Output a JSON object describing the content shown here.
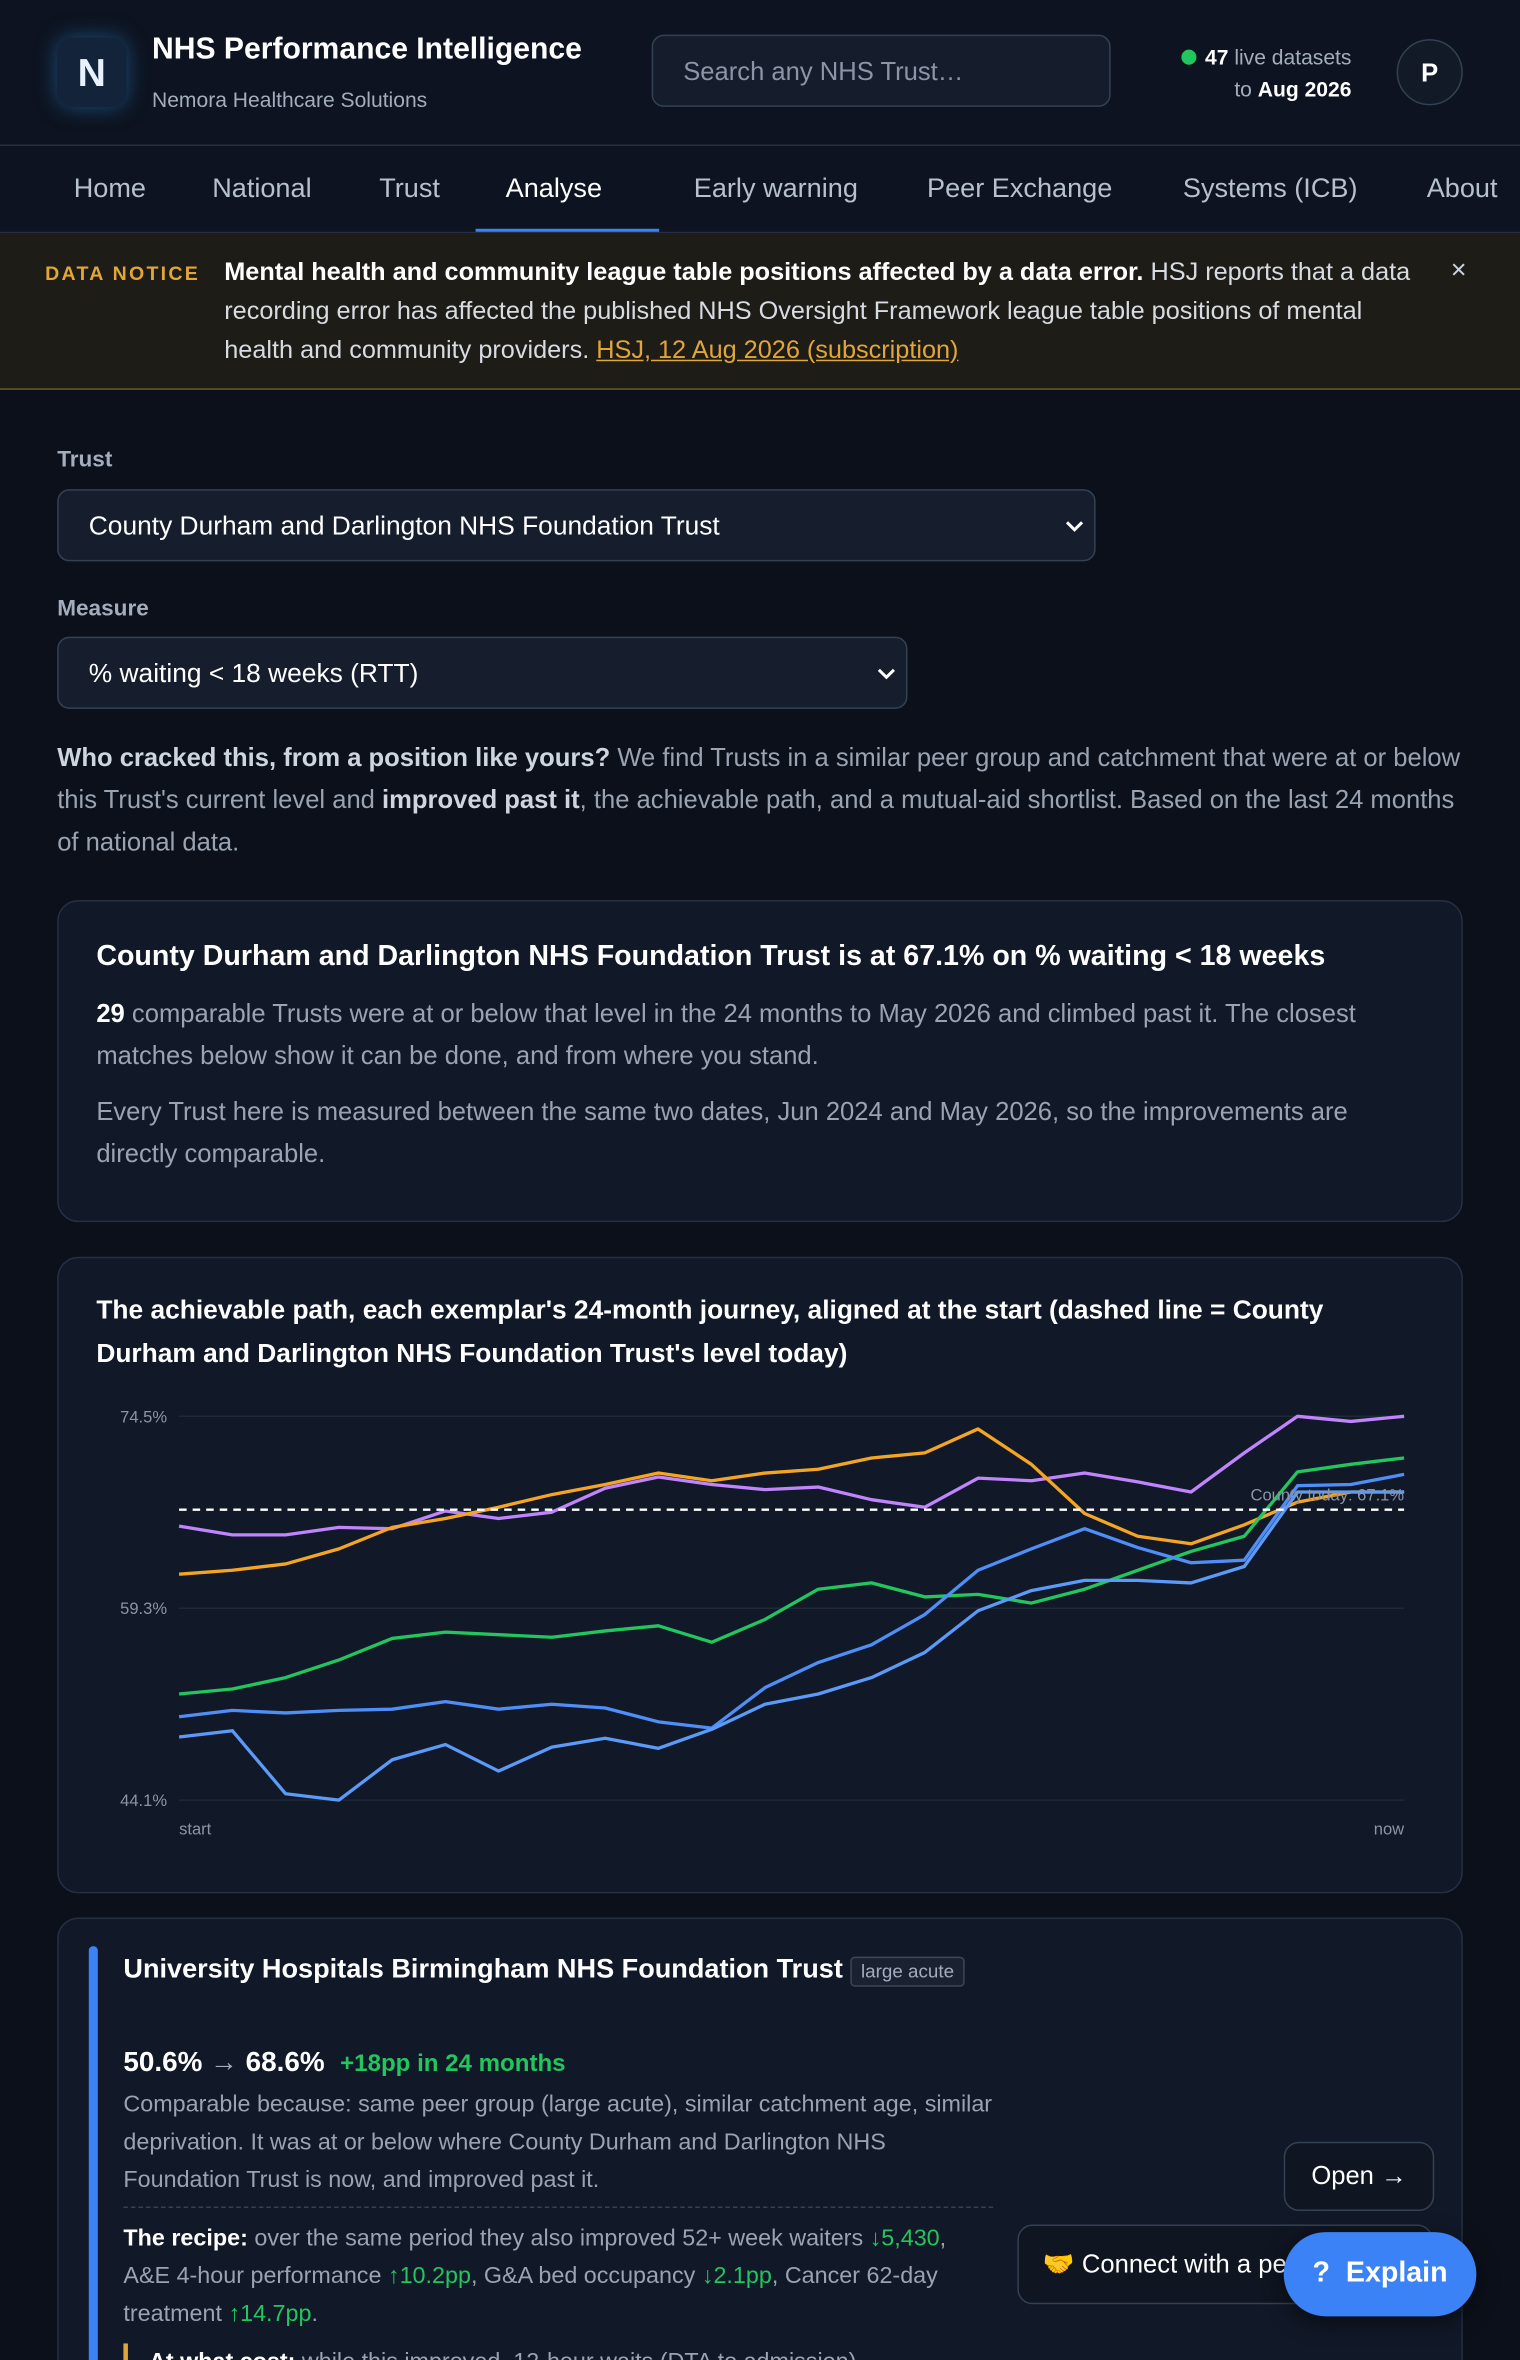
{
  "header": {
    "logo": "N",
    "title": "NHS Performance Intelligence",
    "subtitle": "Nemora Healthcare Solutions",
    "search_placeholder": "Search any NHS Trust…",
    "status": {
      "count": "47",
      "text": "live datasets",
      "prefix": "to",
      "date": "Aug 2026"
    },
    "avatar": "P"
  },
  "nav": {
    "items": [
      "Home",
      "National",
      "Trust",
      "Analyse",
      "Early warning",
      "Peer Exchange",
      "Systems (ICB)",
      "About"
    ],
    "active": 3
  },
  "notice": {
    "tag": "DATA NOTICE",
    "headline": "Mental health and community league table positions affected by a data error.",
    "body": "HSJ reports that a data recording error has affected the published NHS Oversight Framework league table positions of mental health and community providers.",
    "link": "HSJ, 12 Aug 2026 (subscription)",
    "close": "×"
  },
  "form": {
    "trust_label": "Trust",
    "trust_value": "County Durham and Darlington NHS Foundation Trust",
    "measure_label": "Measure",
    "measure_value": "% waiting < 18 weeks (RTT)"
  },
  "intro": {
    "lead": "Who cracked this, from a position like yours?",
    "text1": "We find Trusts in a similar peer group and catchment that were at or below this Trust's current level and",
    "strong": "improved past it",
    "text2": ", the achievable path, and a mutual-aid shortlist. Based on the last 24 months of national data."
  },
  "summary": {
    "title": "County Durham and Darlington NHS Foundation Trust is at 67.1% on % waiting < 18 weeks",
    "count": "29",
    "text1": "comparable Trusts were at or below that level in the 24 months to May 2026 and climbed past it. The closest matches below show it can be done, and from where you stand.",
    "text2": "Every Trust here is measured between the same two dates, Jun 2024 and May 2026, so the improvements are directly comparable."
  },
  "chart_data": {
    "type": "line",
    "title": "The achievable path, each exemplar's 24-month journey, aligned at the start (dashed line = County Durham and Darlington NHS Foundation Trust's level today)",
    "categories": [
      "start",
      null,
      null,
      null,
      null,
      null,
      null,
      null,
      null,
      null,
      null,
      null,
      null,
      null,
      null,
      null,
      null,
      null,
      null,
      null,
      null,
      null,
      null,
      "now"
    ],
    "series": [
      {
        "color": "#c084fc",
        "values": [
          65.8,
          65.1,
          65.1,
          65.7,
          65.6,
          67.0,
          66.4,
          66.9,
          68.8,
          69.7,
          69.1,
          68.7,
          68.9,
          67.9,
          67.3,
          69.6,
          69.4,
          70.0,
          69.3,
          68.5,
          71.6,
          74.5,
          74.1,
          74.5
        ]
      },
      {
        "color": "#f5a524",
        "values": [
          62.0,
          62.3,
          62.8,
          64.0,
          65.7,
          66.4,
          67.3,
          68.3,
          69.1,
          70.0,
          69.4,
          70.0,
          70.3,
          71.2,
          71.6,
          73.5,
          70.7,
          66.8,
          65.0,
          64.4,
          65.9,
          67.7,
          68.5,
          68.5
        ]
      },
      {
        "color": "#22c55e",
        "values": [
          52.5,
          52.9,
          53.8,
          55.2,
          56.9,
          57.4,
          57.2,
          57.0,
          57.5,
          57.9,
          56.6,
          58.4,
          60.8,
          61.3,
          60.2,
          60.4,
          59.7,
          60.8,
          62.3,
          63.8,
          65.0,
          70.1,
          70.7,
          71.2
        ]
      },
      {
        "color": "#4f8ef7",
        "values": [
          50.7,
          51.2,
          51.0,
          51.2,
          51.3,
          51.9,
          51.3,
          51.7,
          51.4,
          50.3,
          49.8,
          53.0,
          55.0,
          56.4,
          58.8,
          62.3,
          64.0,
          65.6,
          64.1,
          62.9,
          63.1,
          69.0,
          69.1,
          69.9
        ]
      },
      {
        "color": "#5b9af8",
        "values": [
          49.1,
          49.6,
          44.6,
          44.1,
          47.3,
          48.5,
          46.4,
          48.3,
          49.0,
          48.2,
          49.7,
          51.7,
          52.5,
          53.8,
          55.8,
          59.1,
          60.7,
          61.5,
          61.5,
          61.3,
          62.6,
          68.5,
          68.5,
          68.5
        ]
      }
    ],
    "ylim": [
      44.1,
      74.5
    ],
    "yticks": [
      {
        "value": 44.1,
        "label": "44.1%"
      },
      {
        "value": 59.3,
        "label": "59.3%"
      },
      {
        "value": 74.5,
        "label": "74.5%"
      }
    ],
    "grid": true,
    "reference": {
      "value": 67.1,
      "label": "County today: 67.1%"
    }
  },
  "exemplar": {
    "name": "University Hospitals Birmingham NHS Foundation Trust",
    "badge": "large acute",
    "from": "50.6%",
    "arrow": "→",
    "to": "68.6%",
    "gain": "+18pp in 24 months",
    "reason": "Comparable because: same peer group (large acute), similar catchment age, similar deprivation. It was at or below where County Durham and Darlington NHS Foundation Trust is now, and improved past it.",
    "recipe_label": "The recipe:",
    "recipe": [
      {
        "text": "over the same period they also improved 52+ week waiters",
        "change": "↓5,430"
      },
      {
        "text": ", A&E 4-hour performance",
        "change": "↑10.2pp"
      },
      {
        "text": ", G&A bed occupancy",
        "change": "↓2.1pp"
      },
      {
        "text": ", Cancer 62-day treatment",
        "change": "↑14.7pp"
      }
    ],
    "recipe_end": ".",
    "cost_label": "At what cost:",
    "cost_text": "while this improved, 12-hour waits (DTA to admission)",
    "open": "Open →",
    "connect": "🤝 Connect with a peer"
  },
  "explain": {
    "icon": "?",
    "label": "Explain"
  }
}
